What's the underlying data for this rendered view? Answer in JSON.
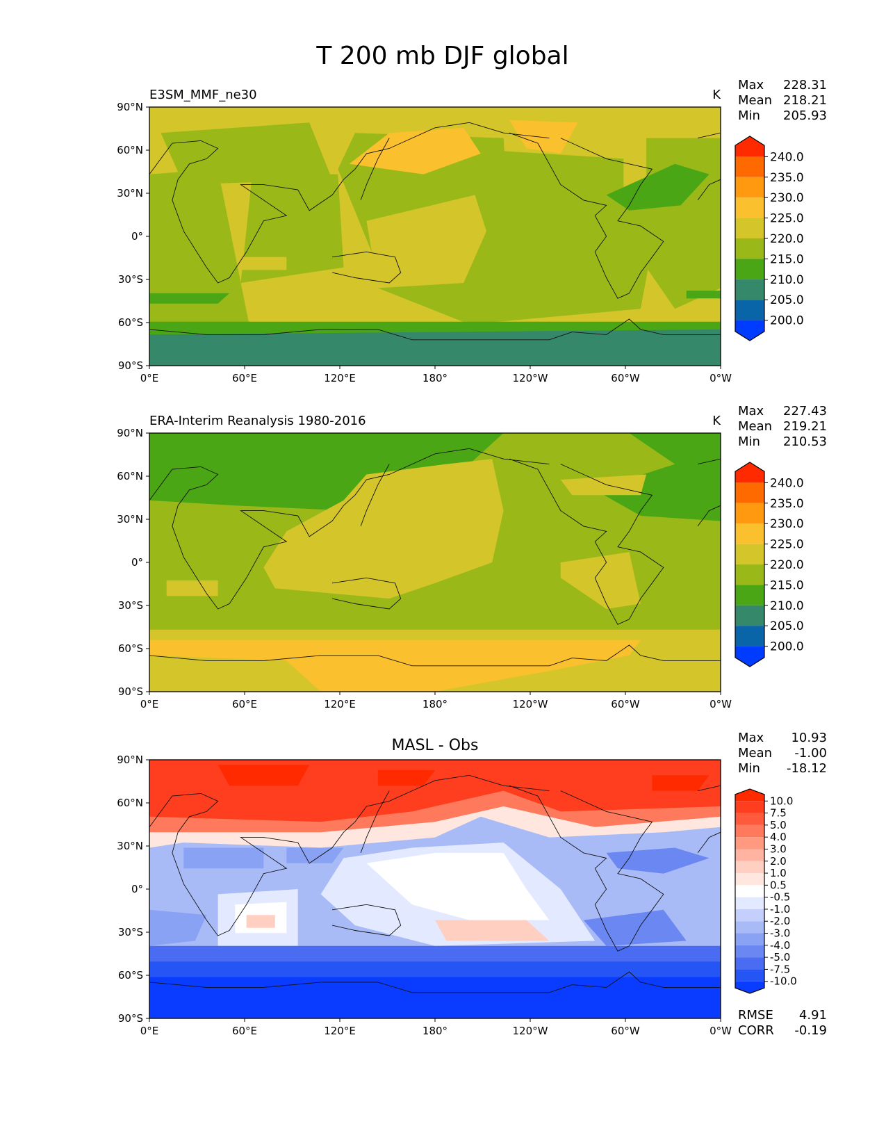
{
  "figure": {
    "title": "T 200 mb DJF global",
    "x_ticks": [
      "0°E",
      "60°E",
      "120°E",
      "180°",
      "120°W",
      "60°W",
      "0°W"
    ],
    "y_ticks": [
      "90°N",
      "60°N",
      "30°N",
      "0°",
      "30°S",
      "60°S",
      "90°S"
    ]
  },
  "chart_data": [
    {
      "type": "heatmap",
      "name": "model",
      "label": "E3SM_MMF_ne30",
      "units": "K",
      "stats": [
        {
          "label": "Max",
          "value": "228.31"
        },
        {
          "label": "Mean",
          "value": "218.21"
        },
        {
          "label": "Min",
          "value": "205.93"
        }
      ],
      "colorbar": {
        "levels": [
          "240.0",
          "235.0",
          "230.0",
          "225.0",
          "220.0",
          "215.0",
          "210.0",
          "205.0",
          "200.0"
        ],
        "colors": [
          "#ff2a00",
          "#ff6a00",
          "#ff9a10",
          "#fbc02d",
          "#d4c52a",
          "#9ab919",
          "#4aa614",
          "#36886a",
          "#0a64a8",
          "#003cff"
        ]
      },
      "xlim": [
        0,
        360
      ],
      "ylim": [
        -90,
        90
      ]
    },
    {
      "type": "heatmap",
      "name": "obs",
      "label": "ERA-Interim Reanalysis 1980-2016",
      "units": "K",
      "stats": [
        {
          "label": "Max",
          "value": "227.43"
        },
        {
          "label": "Mean",
          "value": "219.21"
        },
        {
          "label": "Min",
          "value": "210.53"
        }
      ],
      "colorbar": {
        "levels": [
          "240.0",
          "235.0",
          "230.0",
          "225.0",
          "220.0",
          "215.0",
          "210.0",
          "205.0",
          "200.0"
        ],
        "colors": [
          "#ff2a00",
          "#ff6a00",
          "#ff9a10",
          "#fbc02d",
          "#d4c52a",
          "#9ab919",
          "#4aa614",
          "#36886a",
          "#0a64a8",
          "#003cff"
        ]
      },
      "xlim": [
        0,
        360
      ],
      "ylim": [
        -90,
        90
      ]
    },
    {
      "type": "heatmap",
      "name": "diff",
      "title": "MASL - Obs",
      "stats": [
        {
          "label": "Max",
          "value": "10.93"
        },
        {
          "label": "Mean",
          "value": "-1.00"
        },
        {
          "label": "Min",
          "value": "-18.12"
        }
      ],
      "metrics": [
        {
          "label": "RMSE",
          "value": "4.91"
        },
        {
          "label": "CORR",
          "value": "-0.19"
        }
      ],
      "colorbar": {
        "levels": [
          "10.0",
          "7.5",
          "5.0",
          "4.0",
          "3.0",
          "2.0",
          "1.0",
          "0.5",
          "-0.5",
          "-1.0",
          "-2.0",
          "-3.0",
          "-4.0",
          "-5.0",
          "-7.5",
          "-10.0"
        ],
        "colors": [
          "#ff2a00",
          "#ff3d1f",
          "#ff5a3c",
          "#ff7a5c",
          "#ff9a80",
          "#ffb3a0",
          "#ffcfc2",
          "#ffe6df",
          "#ffffff",
          "#e3e9ff",
          "#c4d0fb",
          "#a9bbf7",
          "#8aa2f4",
          "#6a87f2",
          "#4a6cf2",
          "#2555f5",
          "#0a3cff"
        ]
      },
      "xlim": [
        0,
        360
      ],
      "ylim": [
        -90,
        90
      ]
    }
  ]
}
